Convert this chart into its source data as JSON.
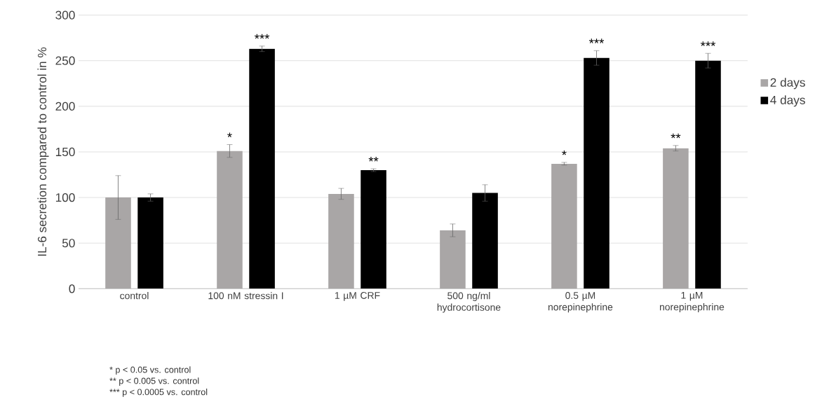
{
  "chart_data": {
    "type": "bar",
    "ylabel": "IL-6 secretion compared to control in %",
    "categories": [
      "control",
      "100 nM stressin I",
      "1 µM CRF",
      "500 ng/ml hydrocortisone",
      "0.5 µM norepinephrine",
      "1 µM norepinephrine"
    ],
    "series": [
      {
        "name": "2 days",
        "color": "#a9a6a6",
        "values": [
          100,
          151,
          104,
          64,
          137,
          154
        ],
        "errors": [
          24,
          7,
          6,
          7,
          1.5,
          3
        ],
        "value_labels": [
          null,
          "*",
          null,
          null,
          "*",
          "**"
        ]
      },
      {
        "name": "4 days",
        "color": "#000000",
        "values": [
          100,
          263,
          130,
          105,
          253,
          250
        ],
        "errors": [
          4,
          3,
          1.5,
          9,
          8,
          8
        ],
        "value_labels": [
          null,
          "***",
          "**",
          null,
          "***",
          "***"
        ]
      }
    ],
    "ylim": [
      0,
      300
    ],
    "yticks": [
      0,
      50,
      100,
      150,
      200,
      250,
      300
    ],
    "grid": "y",
    "legend": "right",
    "annotations": [
      "* p < 0.05 vs. control",
      "** p < 0.005 vs. control",
      "*** p < 0.0005 vs. control"
    ]
  }
}
